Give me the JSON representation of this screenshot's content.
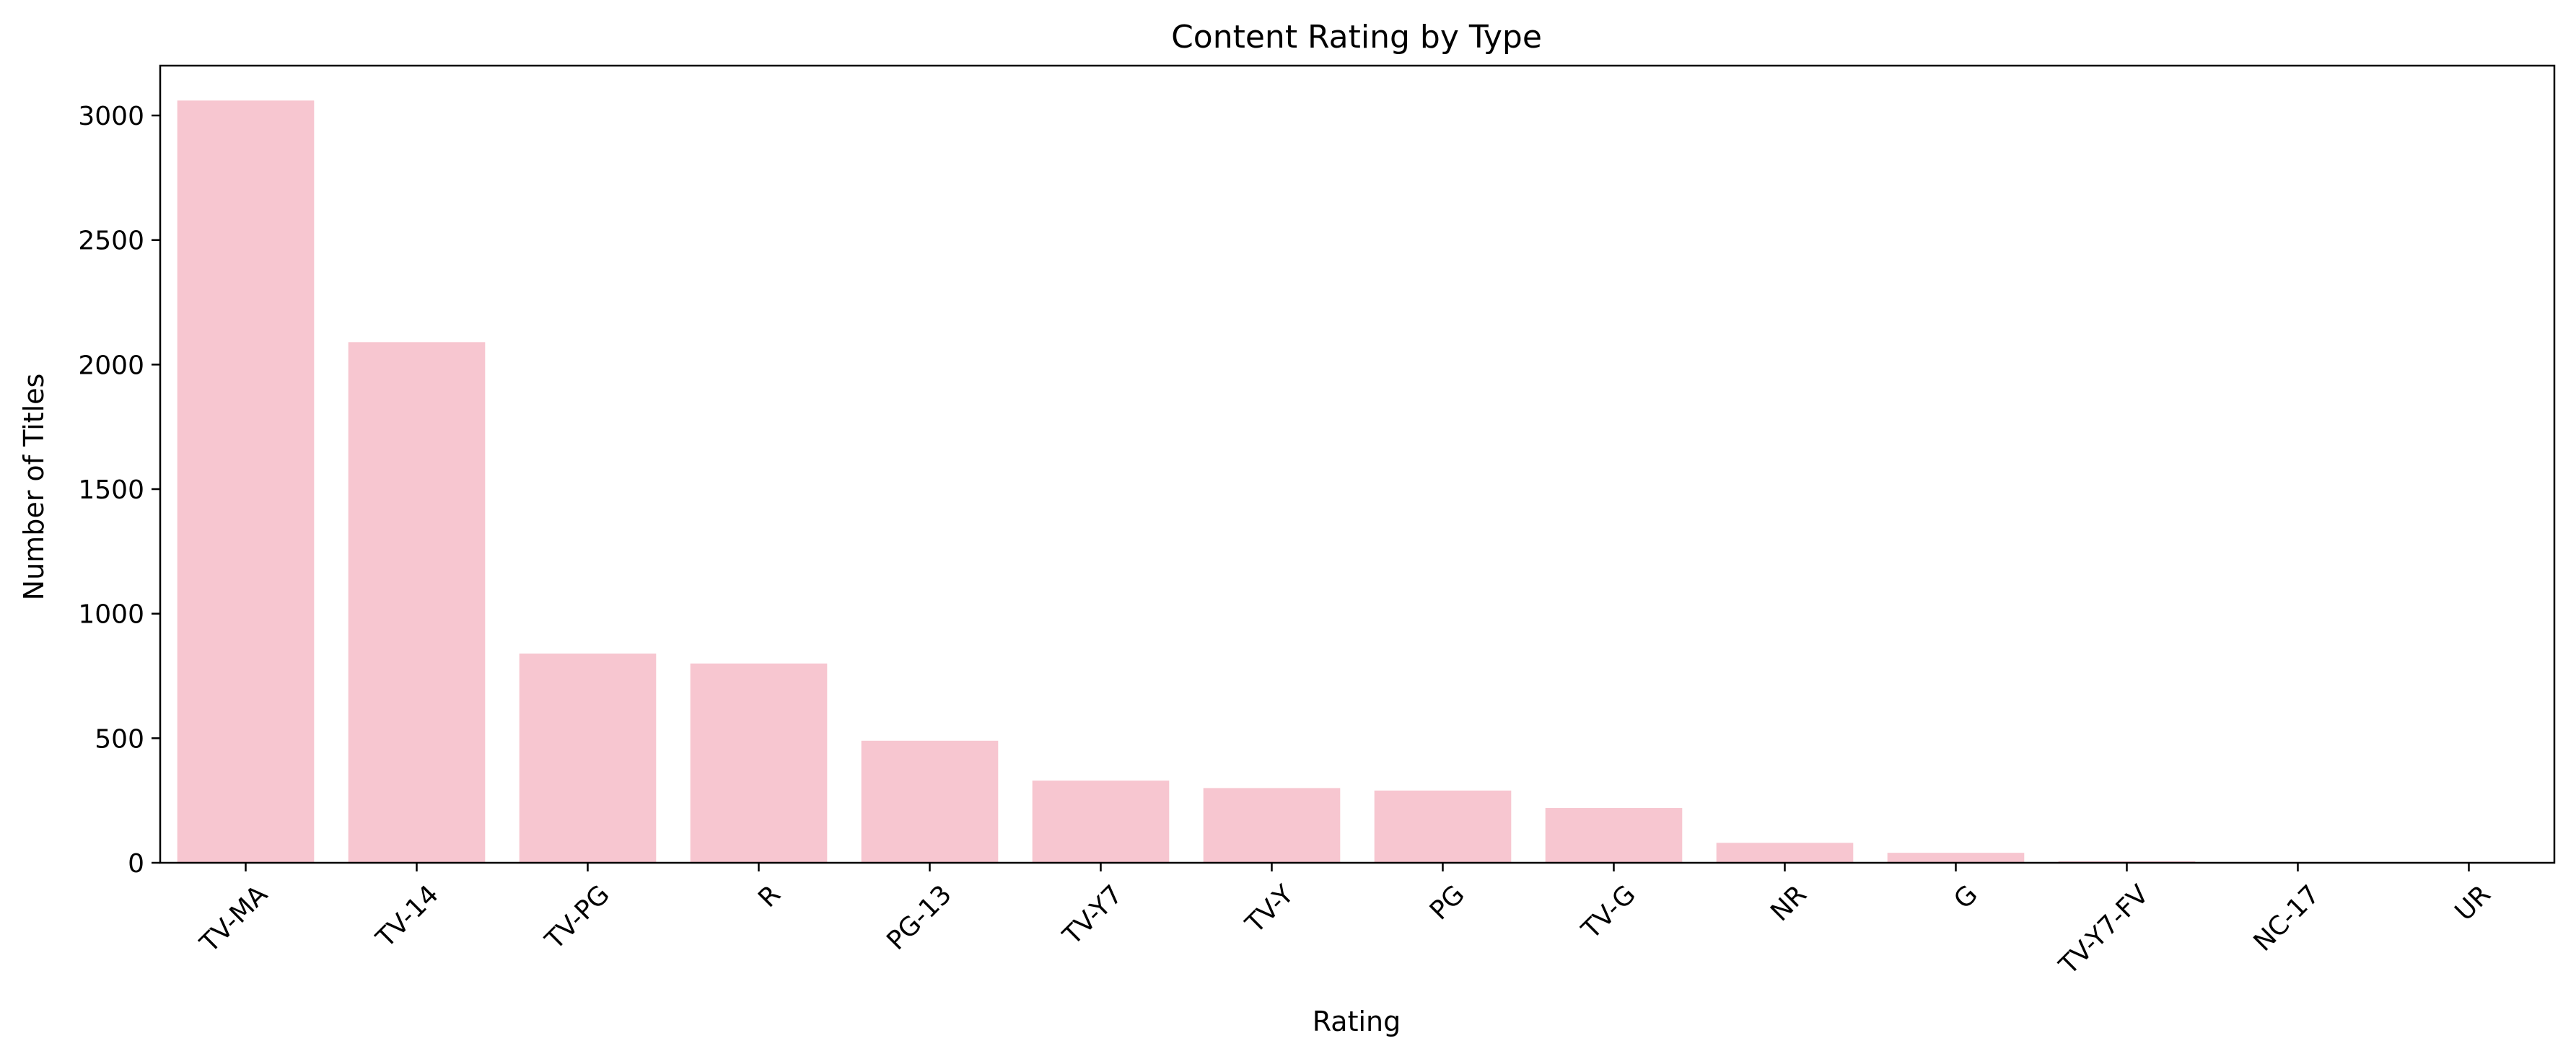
{
  "chart_data": {
    "type": "bar",
    "title": "Content Rating by Type",
    "xlabel": "Rating",
    "ylabel": "Number of Titles",
    "categories": [
      "TV-MA",
      "TV-14",
      "TV-PG",
      "R",
      "PG-13",
      "TV-Y7",
      "TV-Y",
      "PG",
      "TV-G",
      "NR",
      "G",
      "TV-Y7-FV",
      "NC-17",
      "UR"
    ],
    "values": [
      3060,
      2090,
      840,
      800,
      490,
      330,
      300,
      290,
      220,
      80,
      40,
      6,
      3,
      3
    ],
    "ylim": [
      0,
      3200
    ],
    "yticks": [
      0,
      500,
      1000,
      1500,
      2000,
      2500,
      3000
    ],
    "grid": false,
    "bar_color": "#f7c6d0"
  }
}
